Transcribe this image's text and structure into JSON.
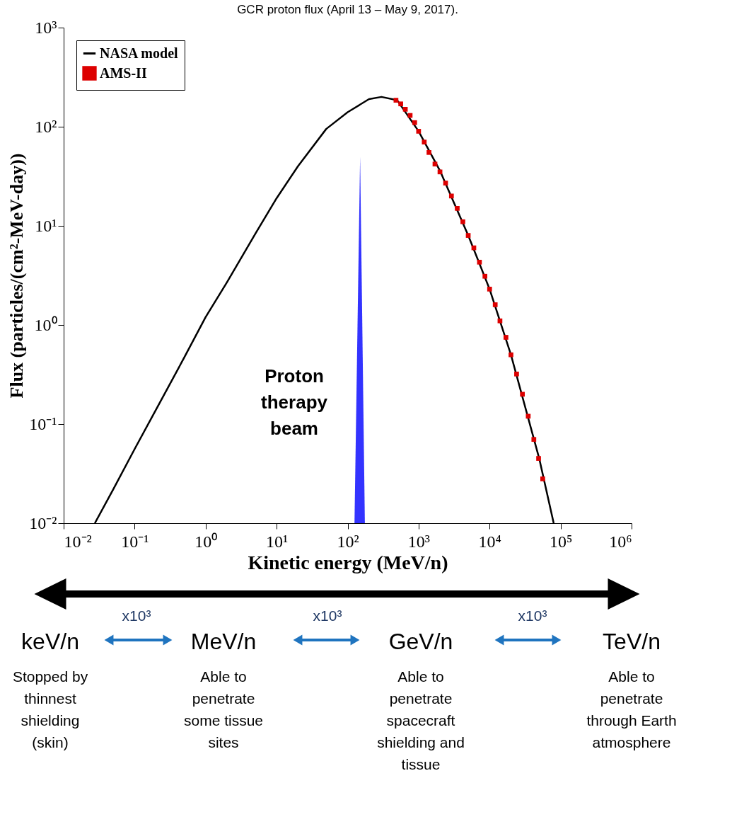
{
  "chart_data": {
    "type": "line",
    "title": "GCR proton flux (April 13 – May 9, 2017).",
    "xlabel": "Kinetic energy (MeV/n)",
    "ylabel": "Flux (particles/(cm²-MeV-day))",
    "series": [
      {
        "name": "NASA model",
        "type": "line",
        "color": "#000000",
        "line_style": "solid",
        "x": [
          0.0275,
          0.05,
          0.1,
          0.2,
          0.5,
          1,
          2,
          5,
          10,
          20,
          50,
          100,
          200,
          300,
          500,
          1000,
          2000,
          5000,
          10000,
          20000,
          50000,
          80000
        ],
        "values": [
          0.01,
          0.022,
          0.056,
          0.14,
          0.47,
          1.2,
          2.7,
          8.3,
          19,
          40,
          95,
          140,
          190,
          200,
          185,
          90,
          36,
          8,
          2.3,
          0.5,
          0.045,
          0.01
        ]
      },
      {
        "name": "AMS-II",
        "type": "scatter",
        "marker": "square",
        "color": "#dd0000",
        "x": [
          480,
          560,
          650,
          760,
          880,
          1000,
          1200,
          1400,
          1700,
          2000,
          2400,
          2900,
          3500,
          4200,
          5000,
          6000,
          7200,
          8600,
          10000,
          12000,
          14000,
          17000,
          20000,
          24000,
          29000,
          35000,
          42000,
          49000,
          56000
        ],
        "values": [
          185,
          170,
          150,
          130,
          110,
          90,
          70,
          55,
          42,
          35,
          27,
          20,
          15,
          11,
          8,
          6,
          4.3,
          3.1,
          2.3,
          1.6,
          1.1,
          0.75,
          0.5,
          0.32,
          0.2,
          0.12,
          0.07,
          0.045,
          0.028
        ]
      },
      {
        "type": "area",
        "color": "#3333ff",
        "x": [
          125,
          150,
          175
        ],
        "values": [
          0.01,
          50,
          0.01
        ]
      }
    ],
    "log": "xy",
    "xlim": [
      0.01,
      1000000
    ],
    "ylim": [
      0.01,
      1000
    ],
    "xticks": [
      {
        "value": 0.01,
        "label": "10⁻²"
      },
      {
        "value": 0.1,
        "label": "10⁻¹"
      },
      {
        "value": 1,
        "label": "10⁰"
      },
      {
        "value": 10,
        "label": "10¹"
      },
      {
        "value": 100,
        "label": "10²"
      },
      {
        "value": 1000,
        "label": "10³"
      },
      {
        "value": 10000,
        "label": "10⁴"
      },
      {
        "value": 100000,
        "label": "10⁵"
      },
      {
        "value": 1000000,
        "label": "10⁶"
      }
    ],
    "yticks": [
      {
        "value": 0.01,
        "label": "10⁻²"
      },
      {
        "value": 0.1,
        "label": "10⁻¹"
      },
      {
        "value": 1,
        "label": "10⁰"
      },
      {
        "value": 10,
        "label": "10¹"
      },
      {
        "value": 100,
        "label": "10²"
      },
      {
        "value": 1000,
        "label": "10³"
      }
    ],
    "grid": false,
    "legend": "top left",
    "annotations": [
      "Proton therapy beam",
      "keV/n",
      "MeV/n",
      "GeV/n",
      "TeV/n",
      "x10³",
      "x10³",
      "x10³",
      "Stopped by thinnest shielding (skin)",
      "Able to penetrate some tissue sites",
      "Able to penetrate spacecraft shielding and tissue",
      "Able to penetrate through Earth atmosphere"
    ]
  }
}
